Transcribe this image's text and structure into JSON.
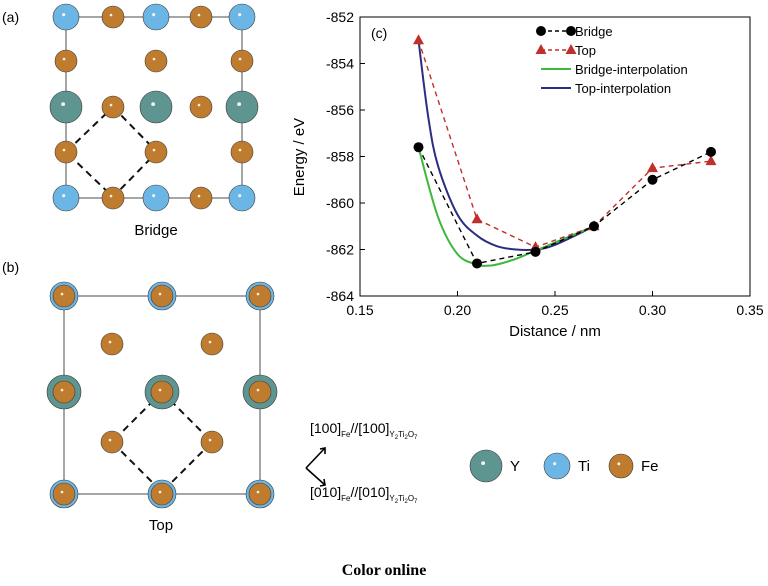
{
  "panel_labels": {
    "a": "(a)",
    "b": "(b)",
    "c": "(c)"
  },
  "panel_a_caption": "Bridge",
  "panel_b_caption": "Top",
  "orientation": {
    "line1_main": "[100]",
    "line1_sub1": "Fe",
    "line1_mid": "//[100]",
    "line1_sub2": "Y",
    "line1_sub2b": "2",
    "line1_sub2c": "Ti",
    "line1_sub2d": "2",
    "line1_sub2e": "O",
    "line1_sub2f": "7",
    "line2_main": "[010]",
    "line2_sub1": "Fe",
    "line2_mid": "//[010]",
    "line2_sub2": "Y",
    "line2_sub2b": "2",
    "line2_sub2c": "Ti",
    "line2_sub2d": "2",
    "line2_sub2e": "O",
    "line2_sub2f": "7"
  },
  "atom_legend": [
    {
      "label": "Y",
      "color": "#5f9590"
    },
    {
      "label": "Ti",
      "color": "#6cb6e6"
    },
    {
      "label": "Fe",
      "color": "#c07c2e"
    }
  ],
  "caption": "Color online",
  "chart_data": {
    "type": "line",
    "xlabel": "Distance / nm",
    "ylabel": "Energy / eV",
    "xlim": [
      0.15,
      0.35
    ],
    "ylim": [
      -864,
      -852
    ],
    "xticks": [
      "0.15",
      "0.20",
      "0.25",
      "0.30",
      "0.35"
    ],
    "yticks": [
      "-852",
      "-854",
      "-856",
      "-858",
      "-860",
      "-862",
      "-864"
    ],
    "legend_position": "top-right",
    "series": [
      {
        "name": "Bridge",
        "color": "#000000",
        "style": "dashed-circle",
        "x": [
          0.18,
          0.21,
          0.24,
          0.27,
          0.3,
          0.33
        ],
        "y": [
          -857.6,
          -862.6,
          -862.1,
          -861.0,
          -859.0,
          -857.8
        ]
      },
      {
        "name": "Top",
        "color": "#c0302a",
        "style": "dashed-triangle",
        "x": [
          0.18,
          0.21,
          0.24,
          0.27,
          0.3,
          0.33
        ],
        "y": [
          -853.0,
          -860.7,
          -861.9,
          -861.0,
          -858.5,
          -858.2
        ]
      },
      {
        "name": "Bridge-interpolation",
        "color": "#3cb83c",
        "style": "solid",
        "x": [
          0.18,
          0.19,
          0.2,
          0.21,
          0.215,
          0.22,
          0.23,
          0.24,
          0.25,
          0.27
        ],
        "y": [
          -857.6,
          -860.6,
          -862.2,
          -862.65,
          -862.7,
          -862.65,
          -862.4,
          -862.05,
          -861.7,
          -861.0
        ]
      },
      {
        "name": "Top-interpolation",
        "color": "#2b2d80",
        "style": "solid",
        "x": [
          0.18,
          0.185,
          0.19,
          0.2,
          0.21,
          0.22,
          0.23,
          0.24,
          0.25,
          0.27
        ],
        "y": [
          -853.0,
          -856.3,
          -858.4,
          -860.5,
          -861.4,
          -861.85,
          -862.0,
          -862.0,
          -861.8,
          -861.0
        ]
      }
    ]
  }
}
